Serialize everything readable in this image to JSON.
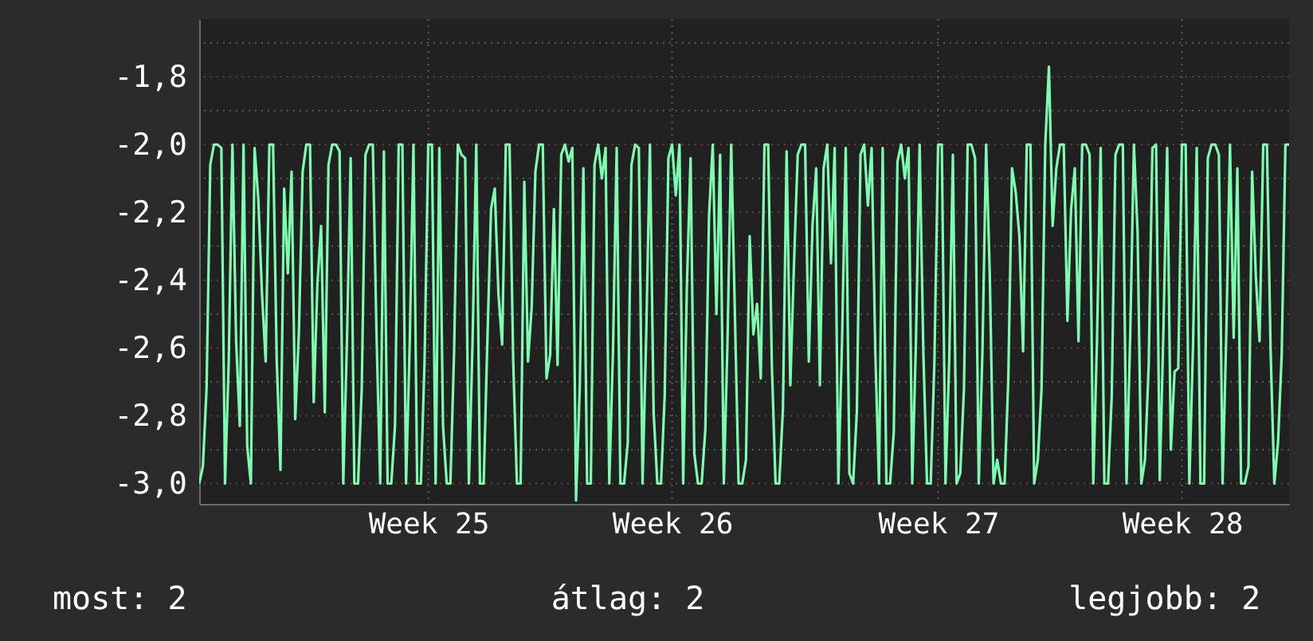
{
  "chart_data": {
    "type": "line",
    "grid": true,
    "marker": "none",
    "line_style": "solid",
    "categories": [
      null,
      null,
      null,
      null,
      null,
      null,
      null,
      null,
      null,
      null,
      null,
      null,
      null,
      null,
      null,
      null,
      null,
      null,
      null,
      null,
      null,
      null,
      null,
      null,
      null,
      null,
      null,
      null,
      null,
      null,
      null,
      null,
      null,
      null,
      null,
      null,
      null,
      null,
      null,
      null,
      null,
      null,
      null,
      null,
      null,
      null,
      null,
      null,
      null,
      null,
      null,
      null,
      null,
      null,
      null,
      null,
      null,
      null,
      null,
      null,
      null,
      null,
      "Week 25",
      null,
      null,
      null,
      null,
      null,
      null,
      null,
      null,
      null,
      null,
      null,
      null,
      null,
      null,
      null,
      null,
      null,
      null,
      null,
      null,
      null,
      null,
      null,
      null,
      null,
      null,
      null,
      null,
      null,
      null,
      null,
      null,
      null,
      null,
      null,
      null,
      null,
      null,
      null,
      null,
      null,
      null,
      null,
      null,
      null,
      null,
      null,
      null,
      null,
      null,
      null,
      null,
      null,
      null,
      null,
      null,
      null,
      null,
      null,
      null,
      null,
      null,
      null,
      null,
      null,
      "Week 26",
      null,
      null,
      null,
      null,
      null,
      null,
      null,
      null,
      null,
      null,
      null,
      null,
      null,
      null,
      null,
      null,
      null,
      null,
      null,
      null,
      null,
      null,
      null,
      null,
      null,
      null,
      null,
      null,
      null,
      null,
      null,
      null,
      null,
      null,
      null,
      null,
      null,
      null,
      null,
      null,
      null,
      null,
      null,
      null,
      null,
      null,
      null,
      null,
      null,
      null,
      null,
      null,
      null,
      null,
      null,
      null,
      null,
      null,
      null,
      null,
      null,
      null,
      null,
      null,
      null,
      null,
      null,
      null,
      null,
      null,
      null,
      "Week 27",
      null,
      null,
      null,
      null,
      null,
      null,
      null,
      null,
      null,
      null,
      null,
      null,
      null,
      null,
      null,
      null,
      null,
      null,
      null,
      null,
      null,
      null,
      null,
      null,
      null,
      null,
      null,
      null,
      null,
      null,
      null,
      null,
      null,
      null,
      null,
      null,
      null,
      null,
      null,
      null,
      null,
      null,
      null,
      null,
      null,
      null,
      null,
      null,
      null,
      null,
      null,
      null,
      null,
      null,
      null,
      null,
      null,
      null,
      null,
      null,
      null,
      null,
      null,
      null,
      null,
      "Week 28",
      null,
      null,
      null,
      null,
      null,
      null,
      null,
      null,
      null,
      null,
      null,
      null,
      null,
      null,
      null,
      null,
      null,
      null,
      null,
      null,
      null,
      null,
      null,
      null,
      null,
      null,
      null,
      null,
      null
    ],
    "ylim": [
      -3.06,
      -1.63
    ],
    "yticks": [
      {
        "value": -1.7,
        "label": null
      },
      {
        "value": -1.8,
        "label": "-1,8"
      },
      {
        "value": -1.9,
        "label": null
      },
      {
        "value": -2.0,
        "label": "-2,0"
      },
      {
        "value": -2.1,
        "label": null
      },
      {
        "value": -2.2,
        "label": "-2,2"
      },
      {
        "value": -2.3,
        "label": null
      },
      {
        "value": -2.4,
        "label": "-2,4"
      },
      {
        "value": -2.5,
        "label": null
      },
      {
        "value": -2.6,
        "label": "-2,6"
      },
      {
        "value": -2.7,
        "label": null
      },
      {
        "value": -2.8,
        "label": "-2,8"
      },
      {
        "value": -2.9,
        "label": null
      },
      {
        "value": -3.0,
        "label": "-3,0"
      }
    ],
    "annotations": [
      "most: 2",
      "átlag: 2",
      "legjobb: 2"
    ],
    "series": [
      {
        "color": "#7dfcb0",
        "values": [
          -3.0,
          -2.95,
          -2.72,
          -2.06,
          -2.0,
          -2.0,
          -2.01,
          -3.0,
          -2.64,
          -2.0,
          -2.58,
          -2.83,
          -2.0,
          -2.89,
          -3.0,
          -2.01,
          -2.16,
          -2.44,
          -2.64,
          -2.0,
          -2.0,
          -2.64,
          -2.96,
          -2.13,
          -2.38,
          -2.08,
          -2.81,
          -2.55,
          -2.08,
          -2.0,
          -2.0,
          -2.76,
          -2.41,
          -2.24,
          -2.79,
          -2.06,
          -2.0,
          -2.0,
          -2.02,
          -3.0,
          -2.58,
          -2.04,
          -3.0,
          -3.0,
          -2.72,
          -2.03,
          -2.0,
          -2.0,
          -2.56,
          -3.0,
          -2.02,
          -3.0,
          -3.0,
          -2.83,
          -2.0,
          -2.0,
          -3.0,
          -2.58,
          -2.0,
          -3.0,
          -3.0,
          -2.64,
          -2.0,
          -2.0,
          -3.0,
          -2.01,
          -2.83,
          -3.0,
          -3.0,
          -2.61,
          -2.0,
          -2.03,
          -2.04,
          -3.0,
          -2.58,
          -2.0,
          -3.0,
          -3.0,
          -2.58,
          -2.19,
          -2.13,
          -2.44,
          -2.59,
          -2.0,
          -2.0,
          -2.64,
          -3.0,
          -3.0,
          -2.11,
          -2.64,
          -2.48,
          -2.08,
          -2.0,
          -2.0,
          -2.69,
          -2.62,
          -2.19,
          -2.65,
          -2.03,
          -2.0,
          -2.05,
          -2.01,
          -3.05,
          -2.72,
          -2.07,
          -3.0,
          -3.0,
          -2.06,
          -2.0,
          -2.1,
          -2.01,
          -3.0,
          -2.61,
          -2.01,
          -3.0,
          -3.0,
          -2.88,
          -2.06,
          -2.0,
          -2.01,
          -3.0,
          -2.56,
          -2.0,
          -2.79,
          -3.0,
          -3.0,
          -2.74,
          -2.04,
          -2.0,
          -2.15,
          -2.0,
          -3.0,
          -2.42,
          -2.04,
          -2.91,
          -3.0,
          -3.0,
          -2.84,
          -2.21,
          -2.0,
          -2.5,
          -2.03,
          -3.0,
          -2.58,
          -2.0,
          -2.5,
          -3.0,
          -3.0,
          -2.93,
          -2.27,
          -2.56,
          -2.47,
          -2.69,
          -2.0,
          -2.0,
          -2.65,
          -3.0,
          -3.0,
          -2.78,
          -2.02,
          -2.71,
          -2.35,
          -2.03,
          -2.0,
          -2.0,
          -2.64,
          -2.24,
          -2.07,
          -2.71,
          -2.07,
          -2.0,
          -2.35,
          -2.01,
          -3.0,
          -2.58,
          -2.01,
          -2.97,
          -3.0,
          -2.79,
          -2.03,
          -2.0,
          -2.18,
          -2.01,
          -2.61,
          -3.0,
          -2.01,
          -3.0,
          -3.0,
          -2.85,
          -2.05,
          -2.0,
          -2.1,
          -2.01,
          -3.0,
          -2.58,
          -2.0,
          -2.61,
          -3.0,
          -3.0,
          -2.64,
          -2.0,
          -2.0,
          -3.0,
          -2.64,
          -2.03,
          -3.0,
          -2.97,
          -2.72,
          -2.0,
          -2.0,
          -2.04,
          -3.0,
          -2.61,
          -2.0,
          -2.39,
          -3.0,
          -2.93,
          -3.0,
          -3.0,
          -2.69,
          -2.07,
          -2.14,
          -2.27,
          -2.61,
          -2.0,
          -2.0,
          -3.0,
          -2.93,
          -2.72,
          -2.0,
          -1.77,
          -2.24,
          -2.07,
          -2.0,
          -2.0,
          -2.52,
          -2.19,
          -2.07,
          -2.58,
          -2.0,
          -2.0,
          -2.03,
          -3.0,
          -2.58,
          -2.01,
          -3.0,
          -3.0,
          -2.74,
          -2.03,
          -2.0,
          -2.0,
          -3.0,
          -2.56,
          -2.0,
          -2.26,
          -3.0,
          -2.93,
          -2.65,
          -2.01,
          -2.0,
          -2.99,
          -2.54,
          -2.01,
          -2.9,
          -2.67,
          -2.66,
          -2.0,
          -2.0,
          -3.0,
          -2.59,
          -2.01,
          -3.0,
          -3.0,
          -2.04,
          -2.0,
          -2.0,
          -2.03,
          -3.0,
          -2.56,
          -2.0,
          -2.57,
          -2.07,
          -3.0,
          -3.0,
          -2.95,
          -2.08,
          -2.39,
          -2.58,
          -2.0,
          -2.0,
          -2.61,
          -3.0,
          -2.88,
          -2.62,
          -2.0,
          -2.0
        ]
      }
    ]
  }
}
